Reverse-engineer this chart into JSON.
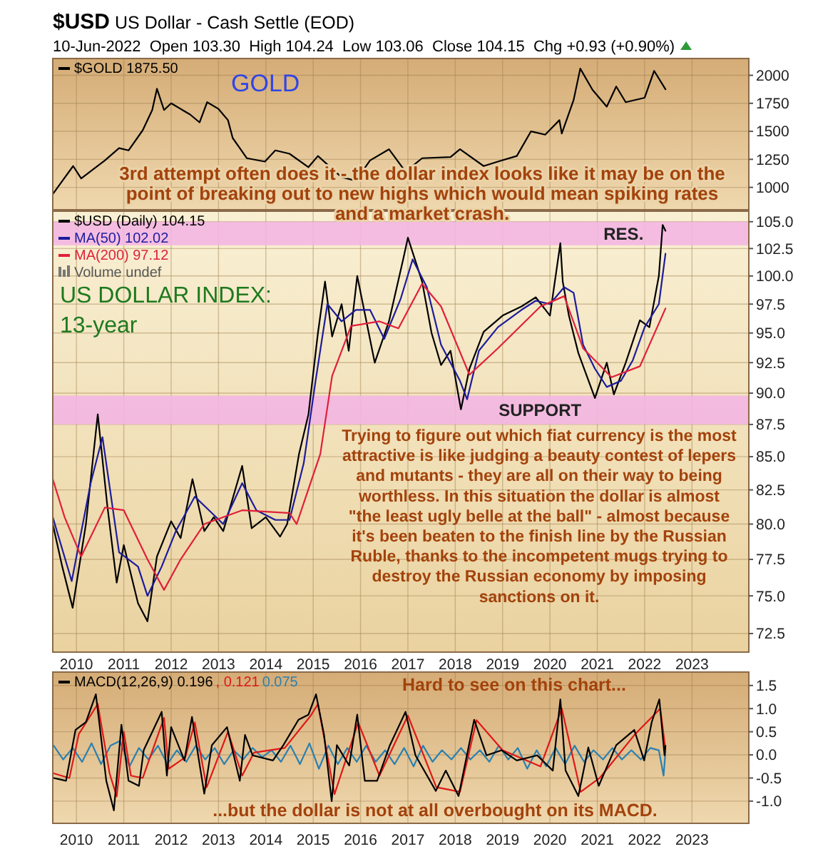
{
  "chart_data": [
    {
      "type": "line",
      "title": "$USD US Dollar - Cash Settle (EOD)",
      "subtitle": "10-Jun-2022  Open 103.30  High 104.24  Low 103.06  Close 104.15  Chg +0.93 (+0.90%)",
      "xlim": [
        2009.5,
        2024.2
      ],
      "xticks": [
        2010,
        2011,
        2012,
        2013,
        2014,
        2015,
        2016,
        2017,
        2018,
        2019,
        2020,
        2021,
        2022,
        2023
      ],
      "ylim": [
        800,
        2150
      ],
      "yticks": [
        1000,
        1250,
        1500,
        1750,
        2000
      ],
      "grid": true,
      "legend": "top left",
      "tick_labels": "y",
      "annotations": [
        "GOLD",
        "3rd attempt often does it - the dollar index looks like it may be on the point of breaking out to new highs which would mean spiking rates and a market crash."
      ],
      "series": [
        {
          "name": "$GOLD 1875.50",
          "color": "#000000",
          "x": [
            2009.5,
            2009.93,
            2010.1,
            2010.6,
            2010.9,
            2011.1,
            2011.4,
            2011.6,
            2011.7,
            2011.85,
            2012.0,
            2012.4,
            2012.6,
            2012.76,
            2013.0,
            2013.2,
            2013.3,
            2013.45,
            2013.6,
            2013.98,
            2014.2,
            2014.5,
            2014.9,
            2015.1,
            2015.6,
            2015.9,
            2016.2,
            2016.6,
            2016.95,
            2017.3,
            2017.9,
            2018.1,
            2018.6,
            2018.9,
            2019.3,
            2019.6,
            2019.9,
            2020.2,
            2020.25,
            2020.5,
            2020.64,
            2020.9,
            2021.2,
            2021.4,
            2021.6,
            2022.0,
            2022.2,
            2022.44
          ],
          "values": [
            940,
            1190,
            1080,
            1240,
            1350,
            1330,
            1510,
            1690,
            1880,
            1690,
            1750,
            1650,
            1580,
            1760,
            1700,
            1600,
            1440,
            1350,
            1260,
            1230,
            1330,
            1300,
            1180,
            1280,
            1090,
            1060,
            1240,
            1340,
            1140,
            1260,
            1270,
            1340,
            1190,
            1230,
            1280,
            1500,
            1470,
            1600,
            1480,
            1780,
            2060,
            1870,
            1720,
            1900,
            1760,
            1800,
            2040,
            1875.5
          ]
        }
      ]
    },
    {
      "type": "line",
      "xlim": [
        2009.5,
        2024.2
      ],
      "xticks": [
        2010,
        2011,
        2012,
        2013,
        2014,
        2015,
        2016,
        2017,
        2018,
        2019,
        2020,
        2021,
        2022,
        2023
      ],
      "ylim": [
        71.3,
        106
      ],
      "log": "y",
      "yticks": [
        72.5,
        {
          "value": 75,
          "label": "75.0"
        },
        77.5,
        {
          "value": 80,
          "label": "80.0"
        },
        82.5,
        {
          "value": 85,
          "label": "85.0"
        },
        87.5,
        {
          "value": 90,
          "label": "90.0"
        },
        92.5,
        {
          "value": 95,
          "label": "95.0"
        },
        97.5,
        {
          "value": 100,
          "label": "100.0"
        },
        102.5,
        {
          "value": 105,
          "label": "105.0"
        }
      ],
      "grid": true,
      "legend": "top left",
      "annotations": [
        "US DOLLAR INDEX: 13-year",
        "Trying to figure out which fiat currency is the most attractive is like judging a beauty contest of lepers and mutants - they are all on their way to being worthless. In this situation the dollar is almost \"the least ugly belle at the ball\" - almost because it's been beaten to the finish line by the Russian Ruble, thanks to the incompetent mugs trying to destroy the Russian economy by imposing sanctions on it.",
        "Volume undef"
      ],
      "bands": [
        {
          "axis": "y",
          "from": 102.8,
          "to": 105,
          "label": "RES.",
          "color": "#f3b6e2"
        },
        {
          "axis": "y",
          "from": 87.5,
          "to": 89.8,
          "label": "SUPPORT",
          "color": "#f3b6e2"
        }
      ],
      "series": [
        {
          "name": "$USD (Daily) 104.15",
          "color": "#000000",
          "x": [
            2009.5,
            2009.7,
            2009.92,
            2010.2,
            2010.45,
            2010.65,
            2010.85,
            2011.0,
            2011.3,
            2011.5,
            2011.7,
            2012.0,
            2012.2,
            2012.45,
            2012.7,
            2012.9,
            2013.1,
            2013.5,
            2013.7,
            2014.0,
            2014.3,
            2014.45,
            2014.7,
            2014.9,
            2015.1,
            2015.25,
            2015.4,
            2015.6,
            2015.75,
            2015.93,
            2016.3,
            2016.6,
            2016.9,
            2017.0,
            2017.3,
            2017.5,
            2017.7,
            2017.9,
            2018.12,
            2018.3,
            2018.6,
            2019.0,
            2019.4,
            2019.7,
            2020.0,
            2020.22,
            2020.27,
            2020.4,
            2020.6,
            2020.95,
            2021.2,
            2021.35,
            2021.6,
            2021.9,
            2022.1,
            2022.3,
            2022.38,
            2022.44
          ],
          "values": [
            80,
            77,
            74.2,
            80,
            88.3,
            81.4,
            75.9,
            78.5,
            74.5,
            73.3,
            77.7,
            80.2,
            79,
            83.3,
            79.5,
            80.5,
            79.5,
            84.3,
            79.7,
            80.5,
            79.1,
            80,
            85.2,
            88.3,
            95,
            99.5,
            94.7,
            97.5,
            93.5,
            100,
            92.5,
            96,
            101.5,
            103.5,
            99.5,
            95,
            92.3,
            93.5,
            88.7,
            92,
            95.1,
            96.5,
            97.3,
            98.1,
            96.5,
            103,
            99.5,
            96.5,
            93.3,
            89.6,
            92.5,
            89.9,
            92.5,
            96.1,
            95.5,
            100,
            104.7,
            104.15
          ]
        },
        {
          "name": "MA(50) 102.02",
          "color": "#1c1c9c",
          "x": [
            2009.5,
            2009.9,
            2010.3,
            2010.55,
            2010.9,
            2011.3,
            2011.5,
            2011.8,
            2012.1,
            2012.5,
            2012.8,
            2013.1,
            2013.5,
            2013.8,
            2014.2,
            2014.5,
            2014.8,
            2015.05,
            2015.3,
            2015.6,
            2015.9,
            2016.2,
            2016.5,
            2016.85,
            2017.1,
            2017.4,
            2017.7,
            2018.1,
            2018.25,
            2018.5,
            2018.9,
            2019.4,
            2019.7,
            2020.0,
            2020.3,
            2020.5,
            2020.7,
            2020.95,
            2021.2,
            2021.5,
            2021.75,
            2022.0,
            2022.3,
            2022.44
          ],
          "values": [
            80.5,
            76,
            83,
            86.5,
            78,
            77,
            75,
            77,
            79.5,
            82,
            81,
            80,
            83,
            81,
            80.3,
            80.3,
            84.5,
            91,
            97.5,
            96,
            97,
            97,
            94.5,
            98,
            101.5,
            99,
            94,
            91,
            89.5,
            93.5,
            95.5,
            97,
            97.8,
            97.5,
            99,
            98.5,
            94,
            92,
            90.5,
            91,
            92.7,
            95.5,
            97.5,
            102.02
          ]
        },
        {
          "name": "MA(200) 97.12",
          "color": "#e0203a",
          "x": [
            2009.5,
            2009.75,
            2010.1,
            2010.6,
            2011.0,
            2011.5,
            2011.85,
            2012.2,
            2012.7,
            2013.5,
            2014.5,
            2014.65,
            2015.15,
            2015.4,
            2015.8,
            2016.4,
            2016.8,
            2017.3,
            2017.7,
            2018.3,
            2018.9,
            2019.8,
            2020.3,
            2020.7,
            2021.3,
            2021.9,
            2022.44
          ],
          "values": [
            83.3,
            80.5,
            77.7,
            81.2,
            81,
            77.5,
            75.4,
            77.5,
            80,
            81,
            80.8,
            80,
            85.2,
            91.4,
            95.6,
            96,
            95.4,
            99.3,
            97.3,
            91.5,
            93.7,
            97.3,
            98.2,
            93.7,
            91.3,
            92.2,
            97.12
          ]
        }
      ]
    },
    {
      "type": "line",
      "xlim": [
        2009.5,
        2024.2
      ],
      "xticks": [
        2010,
        2011,
        2012,
        2013,
        2014,
        2015,
        2016,
        2017,
        2018,
        2019,
        2020,
        2021,
        2022,
        2023
      ],
      "ylim": [
        -1.48,
        1.79
      ],
      "yticks": [
        {
          "value": -1,
          "label": "-1.0"
        },
        -0.5,
        {
          "value": 0,
          "label": "0.0"
        },
        0.5,
        {
          "value": 1,
          "label": "1.0"
        },
        1.5
      ],
      "grid": true,
      "legend": "top left",
      "annotations": [
        "Hard to see on this chart...",
        "...but the dollar is not at all overbought on its MACD."
      ],
      "series": [
        {
          "name": "0.075",
          "color": "#2a80b0",
          "x": [
            2009.52,
            2009.72,
            2009.92,
            2010.12,
            2010.32,
            2010.52,
            2010.72,
            2010.92,
            2011.12,
            2011.32,
            2011.52,
            2011.72,
            2011.92,
            2012.12,
            2012.32,
            2012.52,
            2012.72,
            2012.92,
            2013.12,
            2013.32,
            2013.52,
            2013.72,
            2013.92,
            2014.12,
            2014.32,
            2014.52,
            2014.72,
            2014.92,
            2015.12,
            2015.32,
            2015.52,
            2015.72,
            2015.92,
            2016.12,
            2016.32,
            2016.52,
            2016.72,
            2016.92,
            2017.12,
            2017.32,
            2017.52,
            2017.72,
            2017.92,
            2018.12,
            2018.32,
            2018.52,
            2018.72,
            2018.92,
            2019.12,
            2019.32,
            2019.52,
            2019.72,
            2019.92,
            2020.12,
            2020.32,
            2020.52,
            2020.72,
            2020.92,
            2021.12,
            2021.32,
            2021.52,
            2021.72,
            2021.92,
            2022.12,
            2022.3,
            2022.4,
            2022.44
          ],
          "values": [
            0.2,
            -0.1,
            0.15,
            -0.15,
            0.25,
            -0.2,
            0.2,
            0.3,
            -0.25,
            0.15,
            -0.1,
            0.2,
            -0.2,
            0.1,
            -0.15,
            0.2,
            -0.1,
            0.15,
            -0.2,
            0.1,
            -0.1,
            0.15,
            -0.05,
            0.1,
            -0.15,
            0.2,
            -0.2,
            0.25,
            -0.3,
            0.2,
            -0.2,
            0.15,
            -0.15,
            0.2,
            -0.15,
            0.1,
            -0.2,
            0.15,
            -0.25,
            0.2,
            -0.15,
            0.1,
            -0.1,
            0.15,
            -0.1,
            0.1,
            -0.15,
            0.2,
            -0.1,
            0.15,
            -0.3,
            0.1,
            -0.25,
            0.15,
            -0.2,
            0.2,
            -0.15,
            0.1,
            -0.1,
            0.15,
            -0.1,
            0.1,
            -0.1,
            0.15,
            0.1,
            -0.45,
            0.075
          ]
        },
        {
          "name": ", 0.121",
          "color": "#e01818",
          "x": [
            2009.52,
            2009.85,
            2010.05,
            2010.45,
            2010.7,
            2010.85,
            2011.0,
            2011.15,
            2011.4,
            2011.85,
            2011.95,
            2012.3,
            2012.5,
            2012.75,
            2013.2,
            2013.5,
            2013.75,
            2014.4,
            2014.95,
            2015.1,
            2015.45,
            2015.95,
            2016.4,
            2017.0,
            2017.6,
            2018.1,
            2018.45,
            2019.0,
            2019.8,
            2020.25,
            2020.65,
            2021.05,
            2021.8,
            2022.33,
            2022.44
          ],
          "values": [
            -0.4,
            -0.5,
            0.45,
            1.1,
            -0.4,
            -0.9,
            0.5,
            -0.45,
            -0.5,
            0.8,
            -0.3,
            -0.05,
            0.7,
            -0.7,
            0.5,
            -0.45,
            0.05,
            0.15,
            0.85,
            1.1,
            -0.85,
            0.7,
            -0.45,
            0.85,
            -0.7,
            -0.8,
            0.75,
            0.1,
            -0.25,
            1.0,
            -0.8,
            -0.5,
            0.45,
            1.0,
            0.121
          ]
        },
        {
          "name": "MACD(12,26,9) 0.196",
          "color": "#000000",
          "x": [
            2009.52,
            2009.78,
            2009.98,
            2010.2,
            2010.41,
            2010.63,
            2010.79,
            2010.95,
            2011.1,
            2011.32,
            2011.42,
            2011.8,
            2011.91,
            2012.0,
            2012.28,
            2012.44,
            2012.7,
            2012.86,
            2013.18,
            2013.45,
            2013.56,
            2013.72,
            2014.15,
            2014.37,
            2014.69,
            2014.9,
            2015.06,
            2015.23,
            2015.39,
            2015.5,
            2015.76,
            2015.93,
            2016.09,
            2016.35,
            2016.62,
            2016.95,
            2017.16,
            2017.59,
            2017.8,
            2018.07,
            2018.4,
            2018.66,
            2018.98,
            2019.3,
            2019.73,
            2020.06,
            2020.22,
            2020.33,
            2020.6,
            2020.81,
            2021.03,
            2021.4,
            2021.78,
            2021.99,
            2022.15,
            2022.31,
            2022.42,
            2022.44
          ],
          "values": [
            -0.5,
            -0.56,
            0.54,
            0.71,
            1.31,
            -0.56,
            -1.2,
            0.65,
            -0.56,
            -0.67,
            0.1,
            0.93,
            -0.45,
            0.6,
            -0.12,
            0.82,
            -0.84,
            0.21,
            0.6,
            -0.56,
            0.43,
            -0.01,
            -0.12,
            0.21,
            0.76,
            0.87,
            1.31,
            0.43,
            -1.0,
            0.21,
            -0.23,
            0.87,
            -0.56,
            -0.56,
            0.21,
            0.93,
            -0.01,
            -0.78,
            -0.34,
            -0.89,
            0.76,
            -0.01,
            0.1,
            -0.12,
            -0.01,
            -0.34,
            1.2,
            -0.34,
            -0.89,
            0.16,
            -0.67,
            0.21,
            0.54,
            -0.12,
            0.71,
            1.2,
            -0.01,
            0.196
          ]
        }
      ]
    }
  ]
}
